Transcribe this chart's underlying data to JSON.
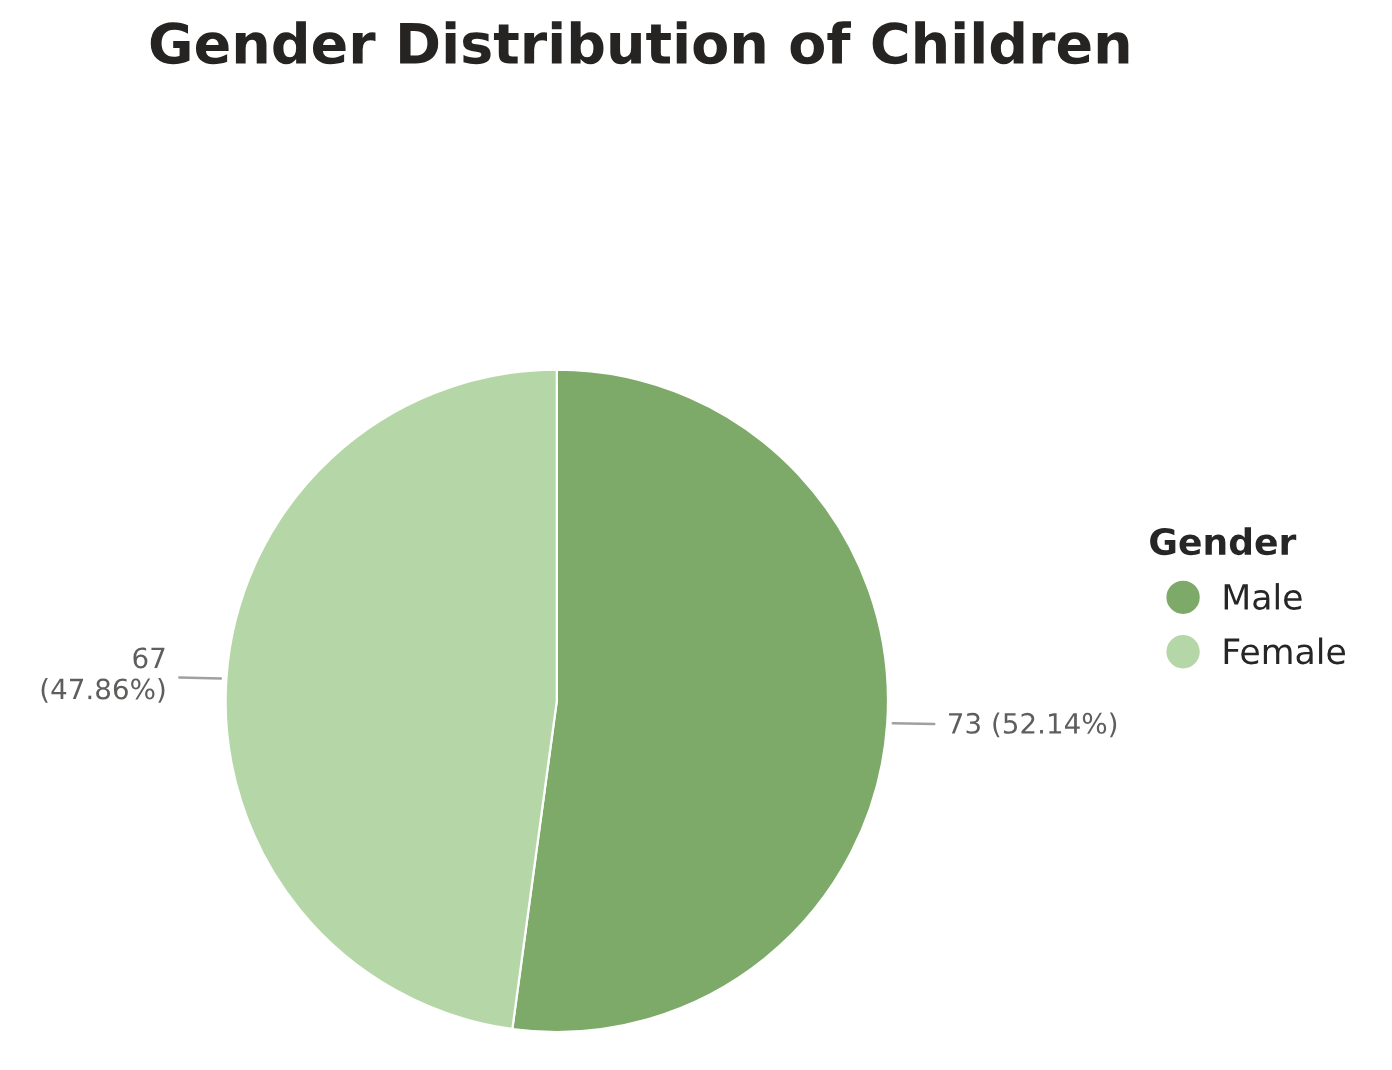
{
  "chart_data": {
    "type": "pie",
    "title": "Gender Distribution of Children",
    "legend_title": "Gender",
    "categories": [
      "Male",
      "Female"
    ],
    "values": [
      73,
      67
    ],
    "colors": [
      "#7daa68",
      "#b5d7a8"
    ],
    "value_labels": [
      "73 (52.14%)",
      "67\n(47.86%)"
    ],
    "legend": "right"
  }
}
